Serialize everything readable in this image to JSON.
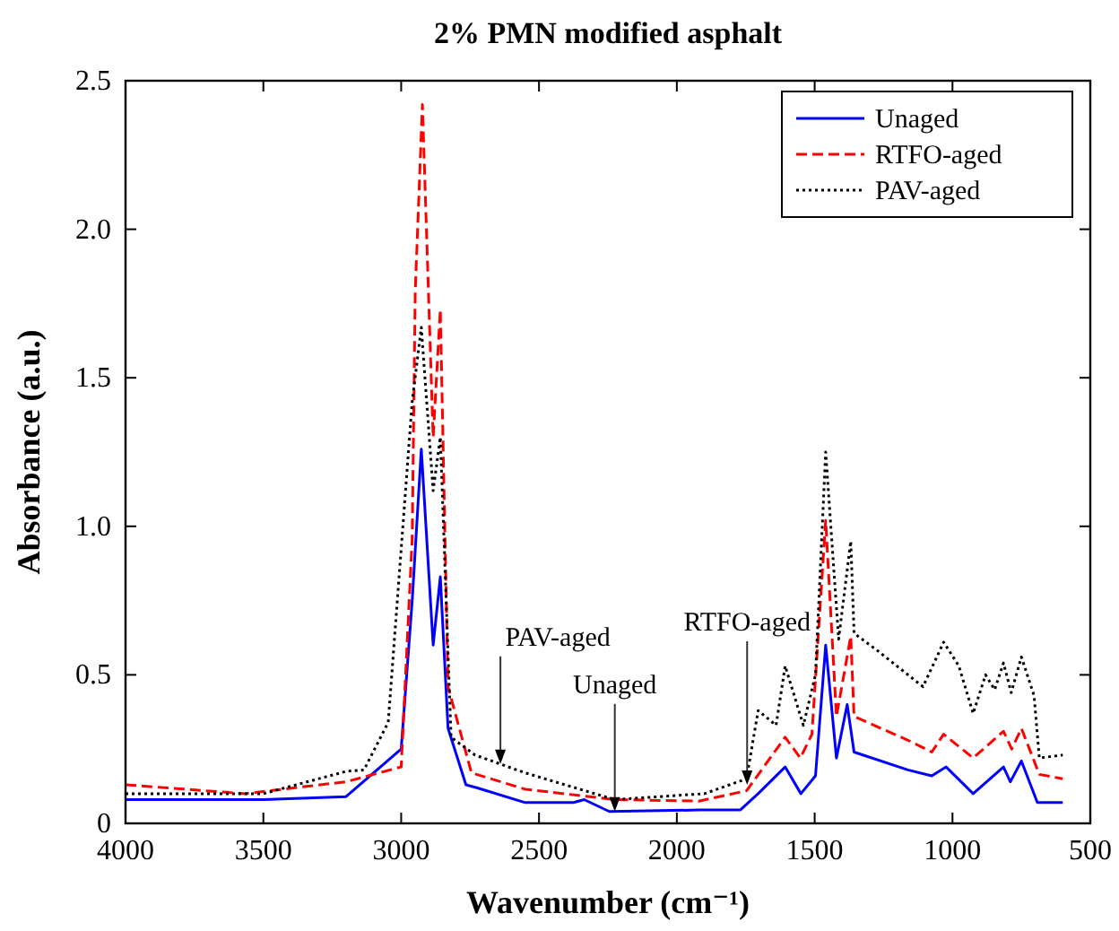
{
  "chart_data": {
    "type": "line",
    "title": "2% PMN modified asphalt",
    "xlabel": "Wavenumber (cm⁻¹)",
    "ylabel": "Absorbance (a.u.)",
    "xlim": [
      4000,
      500
    ],
    "xticks": [
      4000,
      3500,
      3000,
      2500,
      2000,
      1500,
      1000,
      500
    ],
    "ylim": [
      0,
      2.5
    ],
    "yticks": [
      {
        "value": 0,
        "label": "0"
      },
      {
        "value": 0.5,
        "label": "0.5"
      },
      {
        "value": 1,
        "label": "1.0"
      },
      {
        "value": 1.5,
        "label": "1.5"
      },
      {
        "value": 2,
        "label": "2.0"
      },
      {
        "value": 2.5,
        "label": "2.5"
      }
    ],
    "grid": false,
    "legend": "top right",
    "series": [
      {
        "name": "Unaged",
        "color": "#0000ff",
        "line_style": "solid",
        "x": [
          4000,
          3500,
          3200,
          3000,
          2960,
          2927,
          2884,
          2858,
          2830,
          2765,
          2726,
          2550,
          2375,
          2336,
          2245,
          1920,
          1770,
          1705,
          1607,
          1550,
          1497,
          1460,
          1421,
          1382,
          1357,
          1162,
          1075,
          1023,
          925,
          815,
          790,
          750,
          692,
          600
        ],
        "values": [
          0.08,
          0.08,
          0.09,
          0.25,
          0.75,
          1.26,
          0.6,
          0.83,
          0.32,
          0.13,
          0.12,
          0.07,
          0.07,
          0.08,
          0.04,
          0.045,
          0.045,
          0.1,
          0.19,
          0.1,
          0.16,
          0.6,
          0.22,
          0.4,
          0.24,
          0.18,
          0.16,
          0.19,
          0.1,
          0.19,
          0.14,
          0.21,
          0.07,
          0.07
        ]
      },
      {
        "name": "RTFO-aged",
        "color": "#ff0000",
        "line_style": "dashed",
        "x": [
          4000,
          3567,
          3200,
          3000,
          2960,
          2949,
          2923,
          2884,
          2858,
          2830,
          2745,
          2550,
          2225,
          1920,
          1747,
          1607,
          1552,
          1510,
          1460,
          1421,
          1369,
          1357,
          1162,
          1075,
          1032,
          925,
          815,
          785,
          750,
          685,
          600
        ],
        "values": [
          0.13,
          0.1,
          0.14,
          0.19,
          0.96,
          1.79,
          2.42,
          1.3,
          1.73,
          0.46,
          0.17,
          0.115,
          0.08,
          0.075,
          0.11,
          0.29,
          0.22,
          0.3,
          1.02,
          0.36,
          0.63,
          0.36,
          0.28,
          0.24,
          0.3,
          0.22,
          0.31,
          0.25,
          0.32,
          0.165,
          0.15
        ]
      },
      {
        "name": "PAV-aged",
        "color": "#000000",
        "line_style": "dotted",
        "x": [
          4000,
          3500,
          3200,
          3135,
          3047,
          2960,
          2927,
          2884,
          2858,
          2819,
          2732,
          2550,
          2225,
          1900,
          1747,
          1705,
          1640,
          1607,
          1541,
          1497,
          1460,
          1413,
          1369,
          1357,
          1270,
          1107,
          1032,
          977,
          925,
          880,
          847,
          815,
          787,
          750,
          704,
          685,
          600
        ],
        "values": [
          0.1,
          0.1,
          0.175,
          0.18,
          0.34,
          1.42,
          1.67,
          1.12,
          1.3,
          0.29,
          0.23,
          0.17,
          0.08,
          0.1,
          0.15,
          0.38,
          0.33,
          0.53,
          0.33,
          0.5,
          1.25,
          0.62,
          0.95,
          0.64,
          0.58,
          0.46,
          0.61,
          0.53,
          0.37,
          0.5,
          0.45,
          0.54,
          0.44,
          0.56,
          0.43,
          0.22,
          0.23
        ]
      }
    ],
    "annotations": [
      {
        "text": "PAV-aged",
        "x": 2640,
        "y": 0.2
      },
      {
        "text": "Unaged",
        "x": 2225,
        "y": 0.04
      },
      {
        "text": "RTFO-aged",
        "x": 1745,
        "y": 0.13
      }
    ]
  }
}
